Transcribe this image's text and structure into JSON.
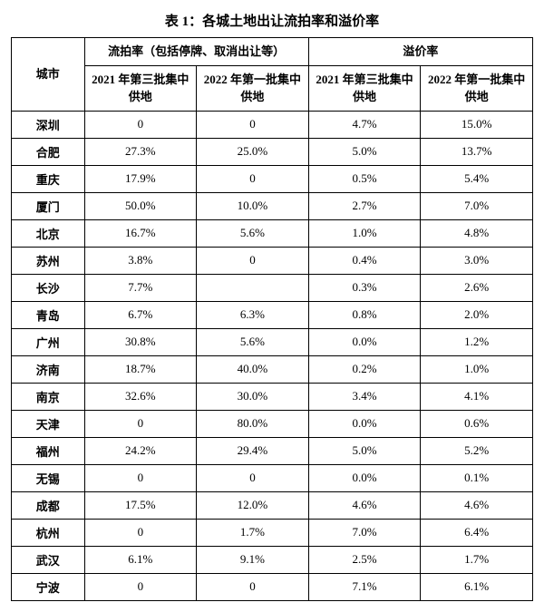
{
  "title": "表 1：各城土地出让流拍率和溢价率",
  "header": {
    "city": "城市",
    "group1": "流拍率（包括停牌、取消出让等）",
    "group2": "溢价率",
    "sub1": "2021 年第三批集中供地",
    "sub2": "2022 年第一批集中供地",
    "sub3": "2021 年第三批集中供地",
    "sub4": "2022 年第一批集中供地"
  },
  "rows": [
    {
      "city": "深圳",
      "a": "0",
      "b": "0",
      "c": "4.7%",
      "d": "15.0%"
    },
    {
      "city": "合肥",
      "a": "27.3%",
      "b": "25.0%",
      "c": "5.0%",
      "d": "13.7%"
    },
    {
      "city": "重庆",
      "a": "17.9%",
      "b": "0",
      "c": "0.5%",
      "d": "5.4%"
    },
    {
      "city": "厦门",
      "a": "50.0%",
      "b": "10.0%",
      "c": "2.7%",
      "d": "7.0%"
    },
    {
      "city": "北京",
      "a": "16.7%",
      "b": "5.6%",
      "c": "1.0%",
      "d": "4.8%"
    },
    {
      "city": "苏州",
      "a": "3.8%",
      "b": "0",
      "c": "0.4%",
      "d": "3.0%"
    },
    {
      "city": "长沙",
      "a": "7.7%",
      "b": "",
      "c": "0.3%",
      "d": "2.6%"
    },
    {
      "city": "青岛",
      "a": "6.7%",
      "b": "6.3%",
      "c": "0.8%",
      "d": "2.0%"
    },
    {
      "city": "广州",
      "a": "30.8%",
      "b": "5.6%",
      "c": "0.0%",
      "d": "1.2%"
    },
    {
      "city": "济南",
      "a": "18.7%",
      "b": "40.0%",
      "c": "0.2%",
      "d": "1.0%"
    },
    {
      "city": "南京",
      "a": "32.6%",
      "b": "30.0%",
      "c": "3.4%",
      "d": "4.1%"
    },
    {
      "city": "天津",
      "a": "0",
      "b": "80.0%",
      "c": "0.0%",
      "d": "0.6%"
    },
    {
      "city": "福州",
      "a": "24.2%",
      "b": "29.4%",
      "c": "5.0%",
      "d": "5.2%"
    },
    {
      "city": "无锡",
      "a": "0",
      "b": "0",
      "c": "0.0%",
      "d": "0.1%"
    },
    {
      "city": "成都",
      "a": "17.5%",
      "b": "12.0%",
      "c": "4.6%",
      "d": "4.6%"
    },
    {
      "city": "杭州",
      "a": "0",
      "b": "1.7%",
      "c": "7.0%",
      "d": "6.4%"
    },
    {
      "city": "武汉",
      "a": "6.1%",
      "b": "9.1%",
      "c": "2.5%",
      "d": "1.7%"
    },
    {
      "city": "宁波",
      "a": "0",
      "b": "0",
      "c": "7.1%",
      "d": "6.1%"
    }
  ]
}
